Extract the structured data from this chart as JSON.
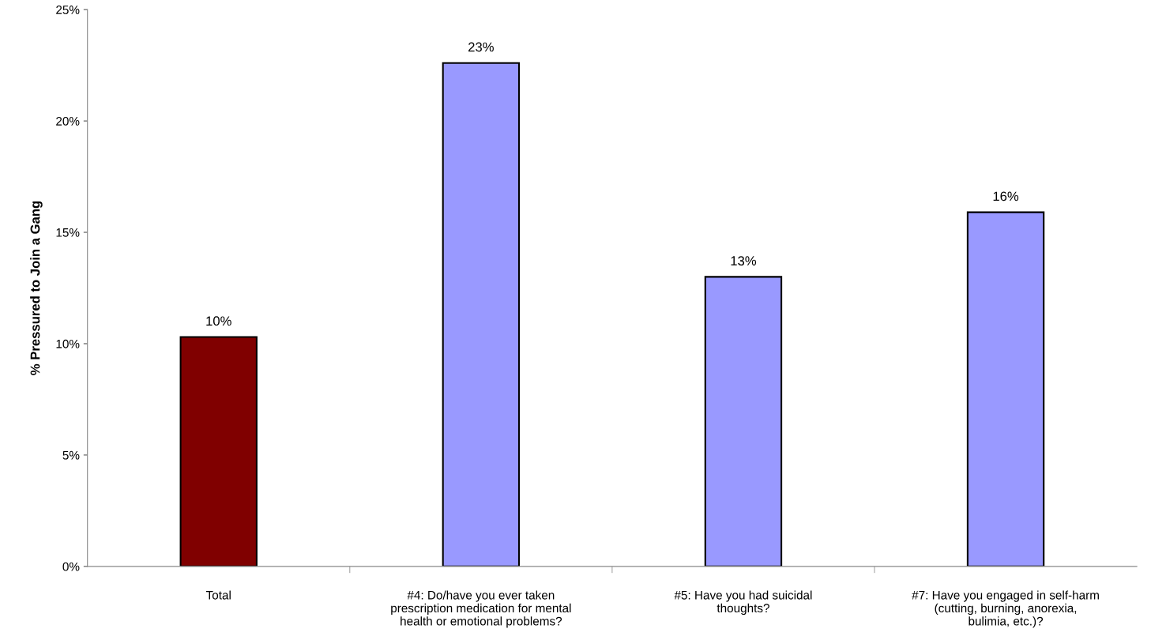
{
  "chart_data": {
    "type": "bar",
    "ylabel": "% Pressured to Join a Gang",
    "categories": [
      "Total",
      "#4: Do/have you ever taken\nprescription medication for mental\nhealth or emotional problems?",
      "#5: Have you had suicidal\nthoughts?",
      "#7: Have you engaged in self-harm\n(cutting, burning, anorexia,\nbulimia, etc.)?"
    ],
    "values": [
      10.3,
      22.6,
      13.0,
      15.9
    ],
    "value_labels": [
      "10%",
      "23%",
      "13%",
      "16%"
    ],
    "colors": [
      "#800000",
      "#9999ff",
      "#9999ff",
      "#9999ff"
    ],
    "ylim": [
      0,
      25
    ],
    "yticks": [
      {
        "value": 0,
        "label": "0%"
      },
      {
        "value": 5,
        "label": "5%"
      },
      {
        "value": 10,
        "label": "10%"
      },
      {
        "value": 15,
        "label": "15%"
      },
      {
        "value": 20,
        "label": "20%"
      },
      {
        "value": 25,
        "label": "25%"
      }
    ],
    "grid": false,
    "legend": false
  }
}
